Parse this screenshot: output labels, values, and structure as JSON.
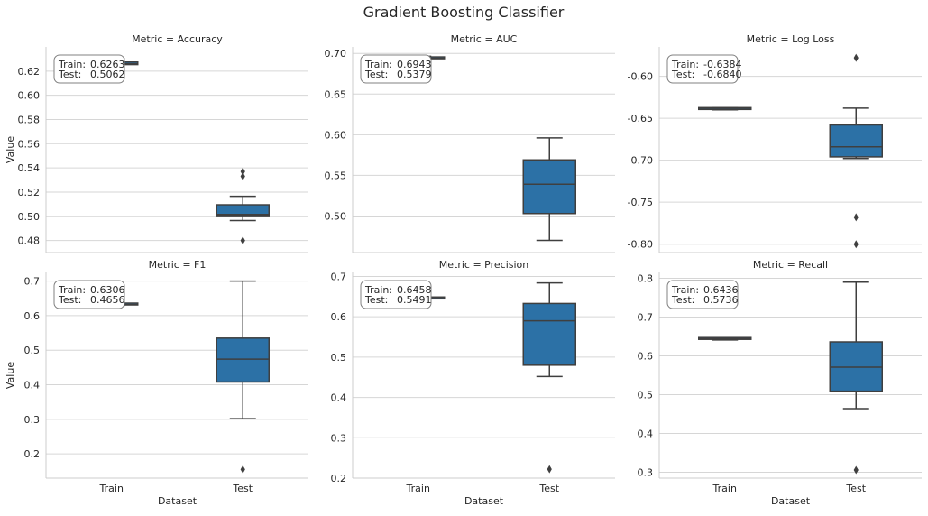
{
  "figure": {
    "title": "Gradient Boosting Classifier"
  },
  "chart_data": {
    "type": "box",
    "title": "Gradient Boosting Classifier",
    "xlabel": "Dataset",
    "ylabel": "Value",
    "categories": [
      "Train",
      "Test"
    ],
    "box_color": "#2c71a6",
    "annotation_labels": {
      "train": "Train:",
      "test": "Test:"
    },
    "panels": [
      {
        "title": "Metric = Accuracy",
        "ylim": [
          0.47,
          0.64
        ],
        "yticks": [
          0.48,
          0.5,
          0.52,
          0.54,
          0.56,
          0.58,
          0.6,
          0.62
        ],
        "tick_decimals": 2,
        "annotation": {
          "train": "0.6263",
          "test": "0.5062"
        },
        "boxes": [
          {
            "category": "Train",
            "q1": 0.6254,
            "median": 0.626,
            "q3": 0.6275,
            "whisker_low": 0.6245,
            "whisker_high": 0.6305,
            "outliers": []
          },
          {
            "category": "Test",
            "q1": 0.5005,
            "median": 0.5015,
            "q3": 0.5095,
            "whisker_low": 0.4965,
            "whisker_high": 0.5165,
            "outliers": [
              0.537,
              0.533,
              0.48
            ]
          }
        ]
      },
      {
        "title": "Metric = AUC",
        "ylim": [
          0.455,
          0.708
        ],
        "yticks": [
          0.5,
          0.55,
          0.6,
          0.65,
          0.7
        ],
        "tick_decimals": 2,
        "annotation": {
          "train": "0.6943",
          "test": "0.5379"
        },
        "boxes": [
          {
            "category": "Train",
            "q1": 0.6935,
            "median": 0.694,
            "q3": 0.6948,
            "whisker_low": 0.693,
            "whisker_high": 0.6965,
            "outliers": []
          },
          {
            "category": "Test",
            "q1": 0.503,
            "median": 0.539,
            "q3": 0.569,
            "whisker_low": 0.47,
            "whisker_high": 0.596,
            "outliers": []
          }
        ]
      },
      {
        "title": "Metric = Log Loss",
        "ylim": [
          -0.81,
          -0.565
        ],
        "yticks": [
          -0.8,
          -0.75,
          -0.7,
          -0.65,
          -0.6
        ],
        "tick_decimals": 2,
        "annotation": {
          "train": "-0.6384",
          "test": "-0.6840"
        },
        "boxes": [
          {
            "category": "Train",
            "q1": -0.6395,
            "median": -0.639,
            "q3": -0.6382,
            "whisker_low": -0.64,
            "whisker_high": -0.6375,
            "outliers": []
          },
          {
            "category": "Test",
            "q1": -0.696,
            "median": -0.684,
            "q3": -0.658,
            "whisker_low": -0.698,
            "whisker_high": -0.638,
            "outliers": [
              -0.578,
              -0.768,
              -0.8
            ]
          }
        ]
      },
      {
        "title": "Metric = F1",
        "ylim": [
          0.13,
          0.725
        ],
        "yticks": [
          0.2,
          0.3,
          0.4,
          0.5,
          0.6,
          0.7
        ],
        "tick_decimals": 1,
        "annotation": {
          "train": "0.6306",
          "test": "0.4656"
        },
        "boxes": [
          {
            "category": "Train",
            "q1": 0.631,
            "median": 0.632,
            "q3": 0.634,
            "whisker_low": 0.629,
            "whisker_high": 0.637,
            "outliers": []
          },
          {
            "category": "Test",
            "q1": 0.408,
            "median": 0.474,
            "q3": 0.535,
            "whisker_low": 0.302,
            "whisker_high": 0.7,
            "outliers": [
              0.155
            ]
          }
        ]
      },
      {
        "title": "Metric = Precision",
        "ylim": [
          0.2,
          0.71
        ],
        "yticks": [
          0.2,
          0.3,
          0.4,
          0.5,
          0.6,
          0.7
        ],
        "tick_decimals": 1,
        "annotation": {
          "train": "0.6458",
          "test": "0.5491"
        },
        "boxes": [
          {
            "category": "Train",
            "q1": 0.6445,
            "median": 0.6455,
            "q3": 0.647,
            "whisker_low": 0.643,
            "whisker_high": 0.649,
            "outliers": []
          },
          {
            "category": "Test",
            "q1": 0.48,
            "median": 0.59,
            "q3": 0.633,
            "whisker_low": 0.452,
            "whisker_high": 0.684,
            "outliers": [
              0.222
            ]
          }
        ]
      },
      {
        "title": "Metric = Recall",
        "ylim": [
          0.285,
          0.815
        ],
        "yticks": [
          0.3,
          0.4,
          0.5,
          0.6,
          0.7,
          0.8
        ],
        "tick_decimals": 1,
        "annotation": {
          "train": "0.6436",
          "test": "0.5736"
        },
        "boxes": [
          {
            "category": "Train",
            "q1": 0.6425,
            "median": 0.6435,
            "q3": 0.6448,
            "whisker_low": 0.641,
            "whisker_high": 0.6465,
            "outliers": []
          },
          {
            "category": "Test",
            "q1": 0.509,
            "median": 0.571,
            "q3": 0.636,
            "whisker_low": 0.464,
            "whisker_high": 0.79,
            "outliers": [
              0.306
            ]
          }
        ]
      }
    ]
  }
}
